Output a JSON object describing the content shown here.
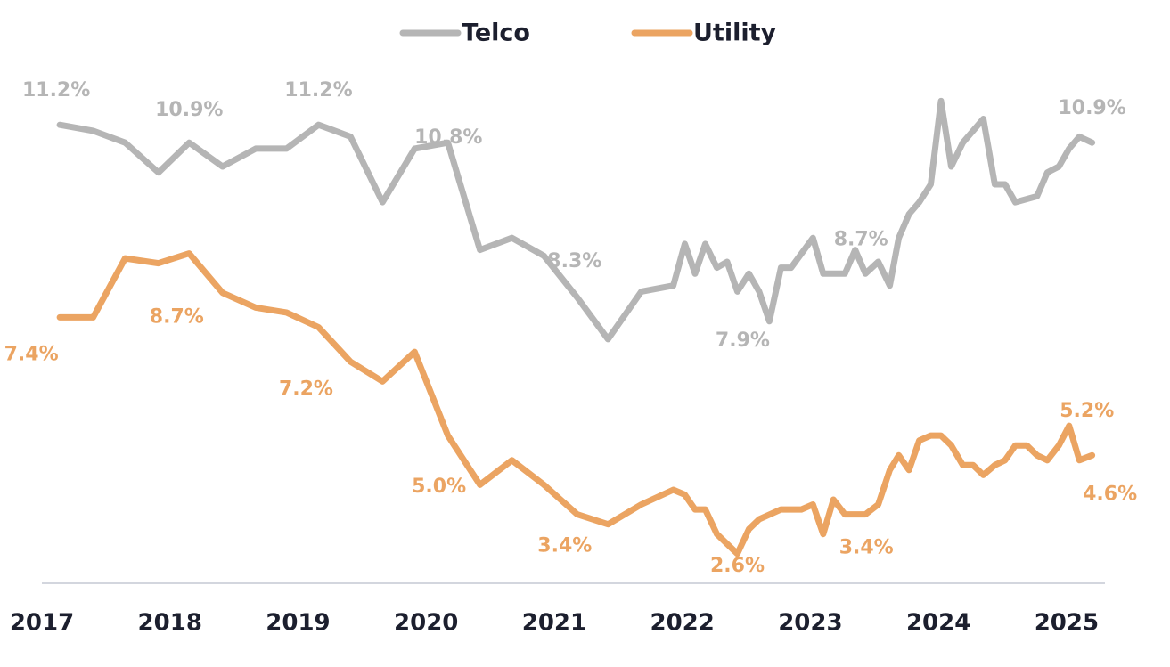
{
  "chart_data": {
    "type": "line",
    "xlim": [
      2017,
      2025.3
    ],
    "xticks": [
      2017,
      2018,
      2019,
      2020,
      2021,
      2022,
      2023,
      2024,
      2025
    ],
    "ylim": [
      3.5,
      12.1
    ],
    "y2lim": [
      2,
      12.4
    ],
    "grid": false,
    "legend": "top",
    "series": [
      {
        "name": "Telco",
        "color": "#b5b5b5",
        "x": [
          2017.14,
          2017.4,
          2017.65,
          2017.91,
          2018.15,
          2018.41,
          2018.67,
          2018.91,
          2019.16,
          2019.41,
          2019.66,
          2019.91,
          2020.17,
          2020.42,
          2020.67,
          2020.92,
          2021.18,
          2021.42,
          2021.68,
          2021.93,
          2022.02,
          2022.1,
          2022.18,
          2022.27,
          2022.35,
          2022.43,
          2022.52,
          2022.6,
          2022.68,
          2022.77,
          2022.85,
          2023.02,
          2023.1,
          2023.18,
          2023.27,
          2023.35,
          2023.43,
          2023.53,
          2023.62,
          2023.69,
          2023.77,
          2023.85,
          2023.94,
          2024.02,
          2024.1,
          2024.19,
          2024.35,
          2024.44,
          2024.52,
          2024.6,
          2024.77,
          2024.85,
          2024.94,
          2025.02,
          2025.1,
          2025.2
        ],
        "values": [
          11.2,
          11.1,
          10.9,
          10.4,
          10.9,
          10.5,
          10.8,
          10.8,
          11.2,
          11.0,
          9.9,
          10.8,
          10.9,
          9.1,
          9.3,
          9.0,
          8.3,
          7.6,
          8.4,
          8.5,
          9.2,
          8.7,
          9.2,
          8.8,
          8.9,
          8.4,
          8.7,
          8.4,
          7.9,
          8.8,
          8.8,
          9.3,
          8.7,
          8.7,
          8.7,
          9.1,
          8.7,
          8.9,
          8.5,
          9.3,
          9.7,
          9.9,
          10.2,
          11.6,
          10.5,
          10.9,
          11.3,
          10.2,
          10.2,
          9.9,
          10.0,
          10.4,
          10.5,
          10.8,
          11.0,
          10.9
        ],
        "value_labels": [
          "11.2%",
          null,
          null,
          null,
          "10.9%",
          null,
          null,
          null,
          "11.2%",
          null,
          null,
          "10.8%",
          null,
          null,
          null,
          null,
          "8.3%",
          null,
          null,
          null,
          null,
          null,
          null,
          null,
          null,
          null,
          null,
          null,
          "7.9%",
          null,
          null,
          null,
          null,
          null,
          "8.7%",
          null,
          null,
          null,
          null,
          null,
          null,
          null,
          null,
          null,
          null,
          null,
          null,
          null,
          null,
          null,
          null,
          null,
          null,
          null,
          null,
          "10.9%"
        ]
      },
      {
        "name": "Utility",
        "color": "#eba462",
        "axis": "y2",
        "x": [
          2017.14,
          2017.4,
          2017.65,
          2017.91,
          2018.15,
          2018.41,
          2018.67,
          2018.91,
          2019.16,
          2019.41,
          2019.66,
          2019.91,
          2020.17,
          2020.42,
          2020.67,
          2020.92,
          2021.18,
          2021.42,
          2021.68,
          2021.93,
          2022.02,
          2022.1,
          2022.18,
          2022.27,
          2022.35,
          2022.43,
          2022.52,
          2022.6,
          2022.77,
          2022.85,
          2022.93,
          2023.02,
          2023.1,
          2023.18,
          2023.27,
          2023.35,
          2023.43,
          2023.53,
          2023.62,
          2023.69,
          2023.77,
          2023.85,
          2023.94,
          2024.02,
          2024.1,
          2024.19,
          2024.27,
          2024.35,
          2024.44,
          2024.52,
          2024.6,
          2024.69,
          2024.77,
          2024.85,
          2024.94,
          2025.02,
          2025.1,
          2025.2
        ],
        "values": [
          7.4,
          7.4,
          8.6,
          8.5,
          8.7,
          7.9,
          7.6,
          7.5,
          7.2,
          6.5,
          6.1,
          6.7,
          5.0,
          4.0,
          4.5,
          4.0,
          3.4,
          3.2,
          3.6,
          3.9,
          3.8,
          3.5,
          3.5,
          3.0,
          2.8,
          2.6,
          3.1,
          3.3,
          3.5,
          3.5,
          3.5,
          3.6,
          3.0,
          3.7,
          3.4,
          3.4,
          3.4,
          3.6,
          4.3,
          4.6,
          4.3,
          4.9,
          5.0,
          5.0,
          4.8,
          4.4,
          4.4,
          4.2,
          4.4,
          4.5,
          4.8,
          4.8,
          4.6,
          4.5,
          4.8,
          5.2,
          4.5,
          4.6
        ],
        "value_labels": [
          "7.4%",
          null,
          null,
          null,
          "8.7%",
          null,
          null,
          null,
          "7.2%",
          null,
          null,
          null,
          "5.0%",
          null,
          null,
          null,
          "3.4%",
          null,
          null,
          null,
          null,
          null,
          null,
          null,
          null,
          "2.6%",
          null,
          null,
          null,
          null,
          null,
          null,
          null,
          null,
          "3.4%",
          null,
          null,
          null,
          null,
          null,
          null,
          null,
          null,
          null,
          null,
          null,
          null,
          null,
          null,
          null,
          null,
          null,
          null,
          null,
          null,
          "5.2%",
          null,
          "4.6%"
        ]
      }
    ]
  }
}
